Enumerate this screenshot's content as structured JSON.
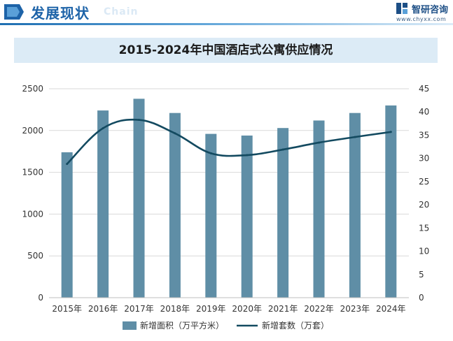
{
  "header": {
    "section_title": "发展现状",
    "section_ghost": "Chain",
    "brand_name": "智研咨询",
    "brand_url": "www.chyxx.com"
  },
  "colors": {
    "bar": "#5f8ea6",
    "line": "#134a60",
    "title_bg": "#dcebf6",
    "accent": "#1d63a8"
  },
  "chart_data": {
    "type": "bar",
    "title": "2015-2024年中国酒店式公寓供应情况",
    "categories": [
      "2015年",
      "2016年",
      "2017年",
      "2018年",
      "2019年",
      "2020年",
      "2021年",
      "2022年",
      "2023年",
      "2024年"
    ],
    "series": [
      {
        "name": "新增面积（万平方米）",
        "type": "bar",
        "axis": "left",
        "values": [
          1740,
          2240,
          2380,
          2210,
          1960,
          1940,
          2030,
          2120,
          2210,
          2300
        ]
      },
      {
        "name": "新增套数（万套）",
        "type": "line",
        "axis": "right",
        "values": [
          28.8,
          36.5,
          38.3,
          35.4,
          31.1,
          30.7,
          31.9,
          33.4,
          34.6,
          35.7
        ]
      }
    ],
    "y_left": {
      "min": 0,
      "max": 2500,
      "ticks": [
        0,
        500,
        1000,
        1500,
        2000,
        2500
      ]
    },
    "y_right": {
      "min": 0,
      "max": 45,
      "ticks": [
        0,
        5,
        10,
        15,
        20,
        25,
        30,
        35,
        40,
        45
      ]
    },
    "grid": true,
    "legend_position": "bottom"
  }
}
